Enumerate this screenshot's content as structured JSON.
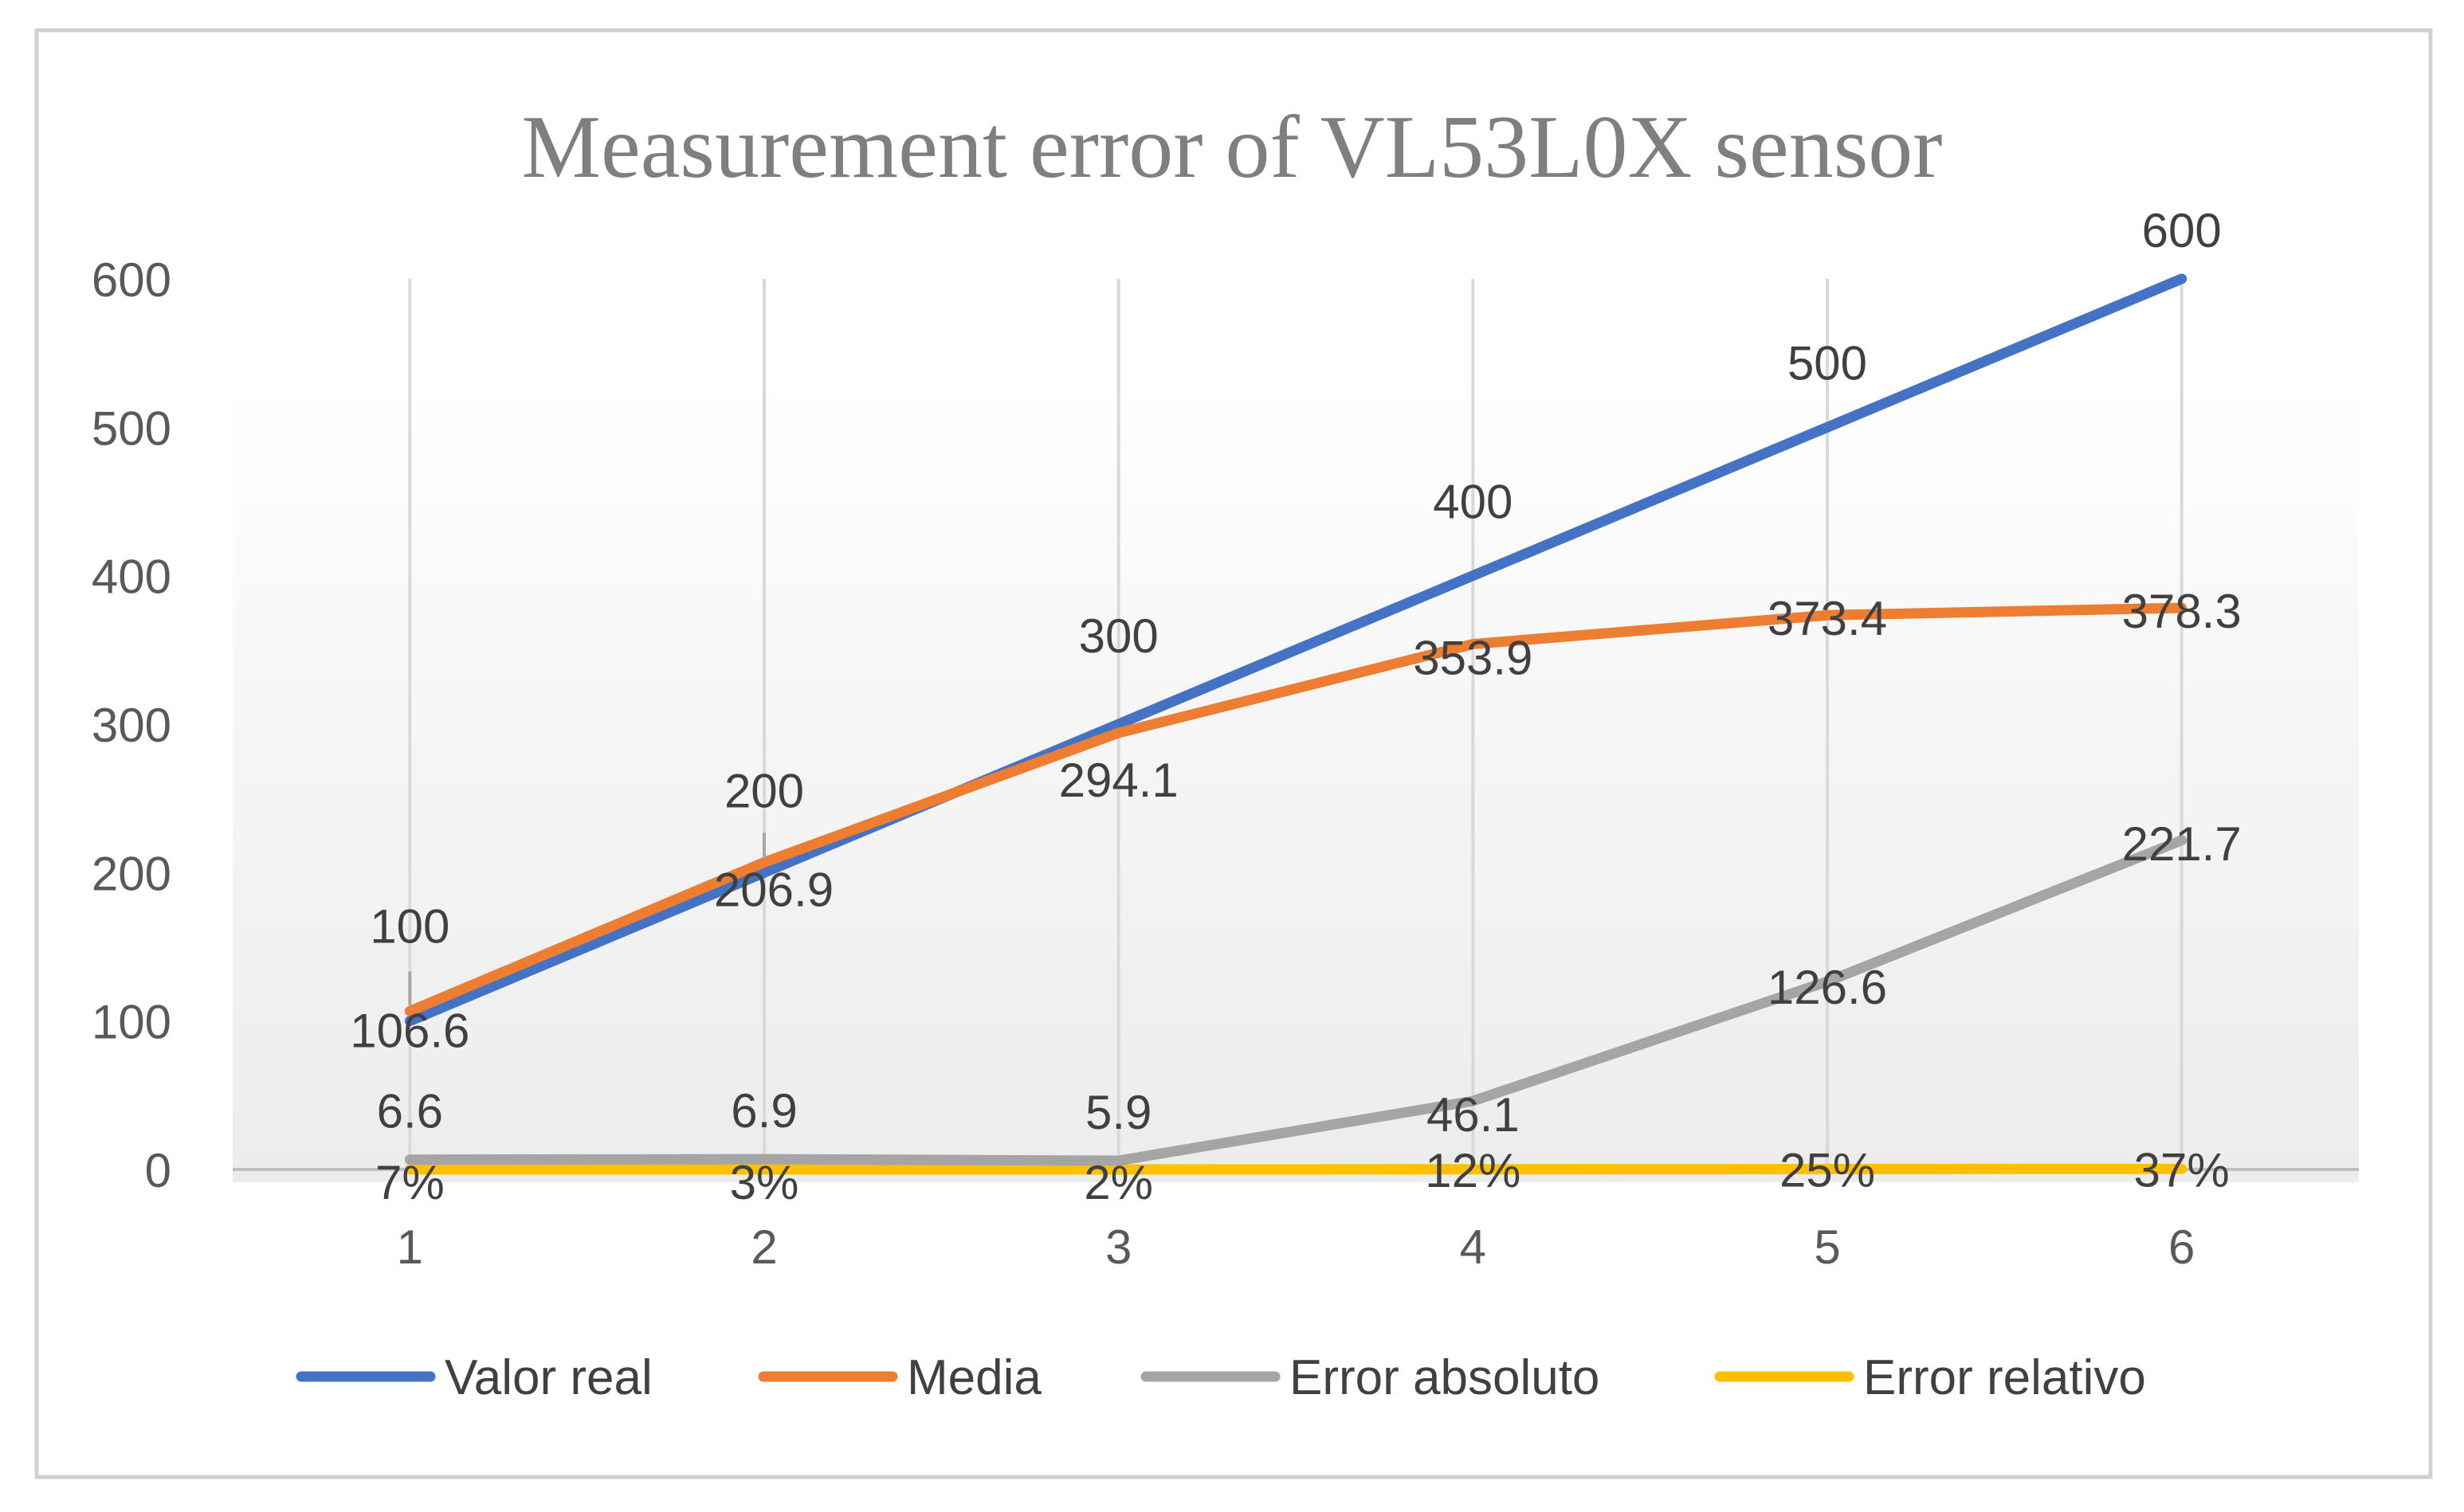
{
  "chart_data": {
    "type": "line",
    "title": "Measurement error of VL53L0X sensor",
    "xlabel": "",
    "ylabel": "",
    "categories": [
      "1",
      "2",
      "3",
      "4",
      "5",
      "6"
    ],
    "ylim": [
      0,
      600
    ],
    "yticks": [
      "0",
      "100",
      "200",
      "300",
      "400",
      "500",
      "600"
    ],
    "grid": "vertical",
    "legend_position": "bottom",
    "series": [
      {
        "name": "Valor real",
        "color": "#4472C4",
        "values": [
          100,
          200,
          300,
          400,
          500,
          600
        ],
        "labels": [
          "100",
          "200",
          "300",
          "400",
          "500",
          "600"
        ]
      },
      {
        "name": "Media",
        "color": "#ED7D31",
        "values": [
          106.6,
          206.9,
          294.1,
          353.9,
          373.4,
          378.3
        ],
        "labels": [
          "106.6",
          "206.9",
          "294.1",
          "353.9",
          "373.4",
          "378.3"
        ]
      },
      {
        "name": "Error absoluto",
        "color": "#A5A5A5",
        "values": [
          6.6,
          6.9,
          5.9,
          46.1,
          126.6,
          221.7
        ],
        "labels": [
          "6.6",
          "6.9",
          "5.9",
          "46.1",
          "126.6",
          "221.7"
        ]
      },
      {
        "name": "Error relativo",
        "color": "#FFC000",
        "values": [
          0.07,
          0.03,
          0.02,
          0.12,
          0.25,
          0.37
        ],
        "labels": [
          "7%",
          "3%",
          "2%",
          "12%",
          "25%",
          "37%"
        ]
      }
    ]
  }
}
